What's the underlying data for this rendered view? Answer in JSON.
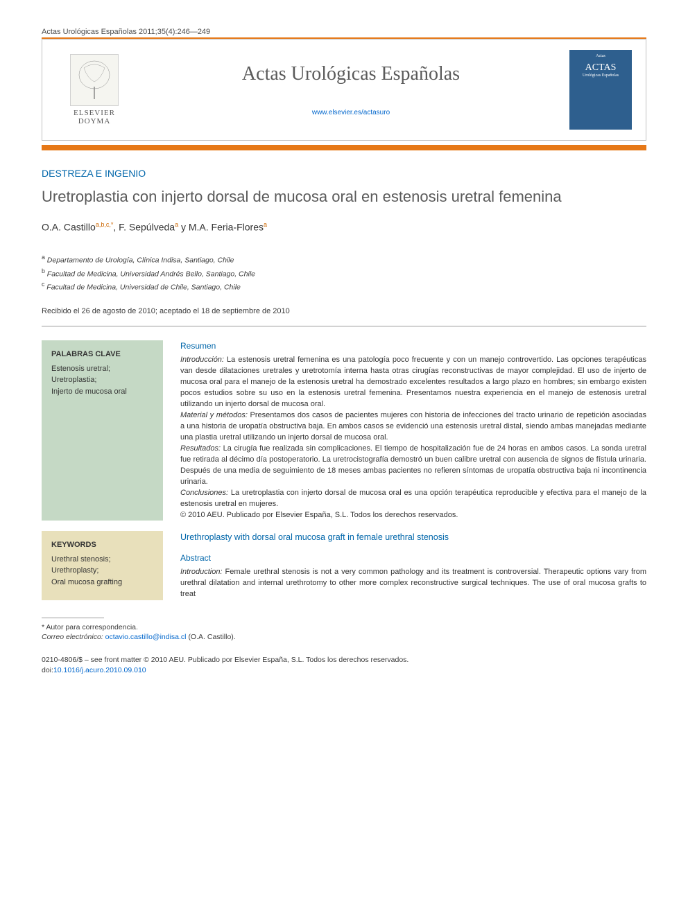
{
  "citation": "Actas Urológicas Españolas 2011;35(4):246—249",
  "colors": {
    "orange": "#e67817",
    "blue_text": "#0066aa",
    "link_blue": "#0066cc",
    "green_box": "#c5d9c5",
    "beige_box": "#e8e0bb",
    "cover_blue": "#2e5f8e"
  },
  "header": {
    "publisher_top": "ELSEVIER",
    "publisher_bottom": "DOYMA",
    "journal_name": "Actas Urológicas Españolas",
    "url": "www.elsevier.es/actasuro",
    "cover_label_top": "Actas",
    "cover_label_main": "ACTAS",
    "cover_label_sub": "Urológicas Españolas"
  },
  "section_label": "DESTREZA E INGENIO",
  "title": "Uretroplastia con injerto dorsal de mucosa oral en estenosis uretral femenina",
  "authors_html": "O.A. Castillo<sup>a,b,c,*</sup>, F. Sepúlveda<sup>a</sup> y M.A. Feria-Flores<sup>a</sup>",
  "affiliations": [
    {
      "sup": "a",
      "text": "Departamento de Urología, Clínica Indisa, Santiago, Chile"
    },
    {
      "sup": "b",
      "text": "Facultad de Medicina, Universidad Andrés Bello, Santiago, Chile"
    },
    {
      "sup": "c",
      "text": "Facultad de Medicina, Universidad de Chile, Santiago, Chile"
    }
  ],
  "dates": "Recibido el 26 de agosto de 2010; aceptado el 18 de septiembre de 2010",
  "keywords_es": {
    "label": "PALABRAS CLAVE",
    "items": "Estenosis uretral;\nUretroplastia;\nInjerto de mucosa oral"
  },
  "keywords_en": {
    "label": "KEYWORDS",
    "items": "Urethral stenosis;\nUrethroplasty;\nOral mucosa grafting"
  },
  "abstract_es": {
    "header": "Resumen",
    "intro_label": "Introducción:",
    "intro": "La estenosis uretral femenina es una patología poco frecuente y con un manejo controvertido. Las opciones terapéuticas van desde dilataciones uretrales y uretrotomía interna hasta otras cirugías reconstructivas de mayor complejidad. El uso de injerto de mucosa oral para el manejo de la estenosis uretral ha demostrado excelentes resultados a largo plazo en hombres; sin embargo existen pocos estudios sobre su uso en la estenosis uretral femenina. Presentamos nuestra experiencia en el manejo de estenosis uretral utilizando un injerto dorsal de mucosa oral.",
    "methods_label": "Material y métodos:",
    "methods": "Presentamos dos casos de pacientes mujeres con historia de infecciones del tracto urinario de repetición asociadas a una historia de uropatía obstructiva baja. En ambos casos se evidenció una estenosis uretral distal, siendo ambas manejadas mediante una plastia uretral utilizando un injerto dorsal de mucosa oral.",
    "results_label": "Resultados:",
    "results": "La cirugía fue realizada sin complicaciones. El tiempo de hospitalización fue de 24 horas en ambos casos. La sonda uretral fue retirada al décimo día postoperatorio. La uretrocistografía demostró un buen calibre uretral con ausencia de signos de fístula urinaria. Después de una media de seguimiento de 18 meses ambas pacientes no refieren síntomas de uropatía obstructiva baja ni incontinencia urinaria.",
    "conclusions_label": "Conclusiones:",
    "conclusions": "La uretroplastia con injerto dorsal de mucosa oral es una opción terapéutica reproducible y efectiva para el manejo de la estenosis uretral en mujeres.",
    "copyright": "© 2010 AEU. Publicado por Elsevier España, S.L. Todos los derechos reservados."
  },
  "abstract_en": {
    "title": "Urethroplasty with dorsal oral mucosa graft in female urethral stenosis",
    "header": "Abstract",
    "intro_label": "Introduction:",
    "intro": "Female urethral stenosis is not a very common pathology and its treatment is controversial. Therapeutic options vary from urethral dilatation and internal urethrotomy to other more complex reconstructive surgical techniques. The use of oral mucosa grafts to treat"
  },
  "footnote": {
    "corresponding": "* Autor para correspondencia.",
    "email_label": "Correo electrónico:",
    "email": "octavio.castillo@indisa.cl",
    "email_author": "(O.A. Castillo)."
  },
  "bottom": {
    "issn_line": "0210-4806/$ – see front matter © 2010 AEU. Publicado por Elsevier España, S.L. Todos los derechos reservados.",
    "doi_label": "doi:",
    "doi": "10.1016/j.acuro.2010.09.010"
  }
}
